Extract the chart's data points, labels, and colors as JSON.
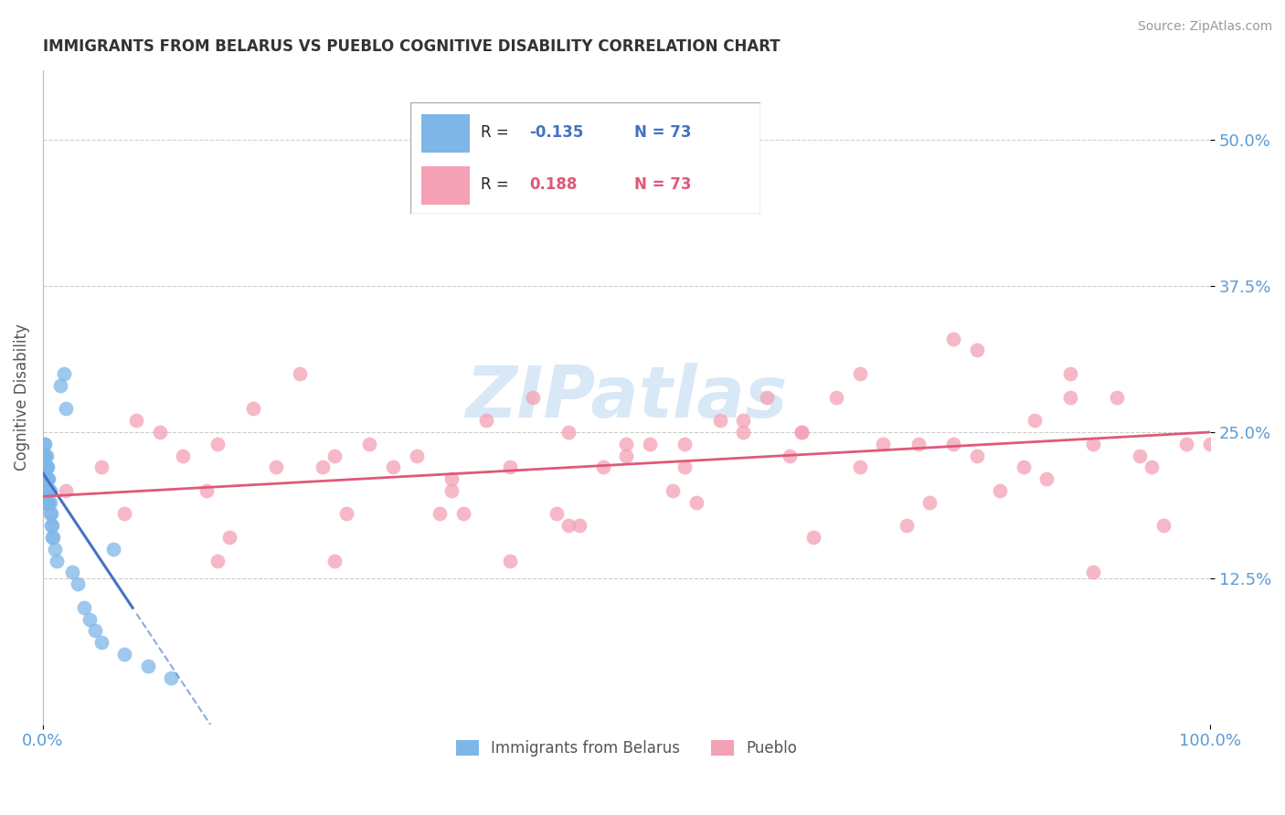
{
  "title": "IMMIGRANTS FROM BELARUS VS PUEBLO COGNITIVE DISABILITY CORRELATION CHART",
  "source_text": "Source: ZipAtlas.com",
  "ylabel": "Cognitive Disability",
  "xlim": [
    0.0,
    1.0
  ],
  "ylim": [
    0.0,
    0.56
  ],
  "yticks": [
    0.125,
    0.25,
    0.375,
    0.5
  ],
  "ytick_labels": [
    "12.5%",
    "25.0%",
    "37.5%",
    "50.0%"
  ],
  "xticks": [
    0.0,
    1.0
  ],
  "xtick_labels": [
    "0.0%",
    "100.0%"
  ],
  "blue_R": -0.135,
  "blue_N": 73,
  "pink_R": 0.188,
  "pink_N": 73,
  "blue_color": "#7EB6E8",
  "pink_color": "#F4A0B5",
  "blue_line_color": "#4472C4",
  "pink_line_color": "#E05878",
  "grid_color": "#CCCCCC",
  "title_color": "#333333",
  "axis_label_color": "#555555",
  "tick_label_color": "#5B9BD5",
  "source_color": "#999999",
  "watermark_color": "#AACCEE",
  "legend_blue_label": "Immigrants from Belarus",
  "legend_pink_label": "Pueblo",
  "blue_scatter_x": [
    0.001,
    0.001,
    0.001,
    0.001,
    0.001,
    0.001,
    0.001,
    0.001,
    0.001,
    0.001,
    0.001,
    0.001,
    0.001,
    0.001,
    0.001,
    0.001,
    0.002,
    0.002,
    0.002,
    0.002,
    0.002,
    0.002,
    0.002,
    0.002,
    0.002,
    0.002,
    0.002,
    0.002,
    0.002,
    0.002,
    0.003,
    0.003,
    0.003,
    0.003,
    0.003,
    0.003,
    0.003,
    0.003,
    0.003,
    0.003,
    0.004,
    0.004,
    0.004,
    0.004,
    0.004,
    0.004,
    0.005,
    0.005,
    0.005,
    0.005,
    0.006,
    0.006,
    0.006,
    0.007,
    0.007,
    0.008,
    0.008,
    0.009,
    0.01,
    0.012,
    0.015,
    0.018,
    0.02,
    0.025,
    0.03,
    0.035,
    0.04,
    0.045,
    0.05,
    0.06,
    0.07,
    0.09,
    0.11
  ],
  "blue_scatter_y": [
    0.21,
    0.22,
    0.2,
    0.23,
    0.19,
    0.24,
    0.22,
    0.21,
    0.2,
    0.23,
    0.22,
    0.21,
    0.2,
    0.19,
    0.22,
    0.23,
    0.22,
    0.21,
    0.2,
    0.23,
    0.24,
    0.2,
    0.21,
    0.22,
    0.2,
    0.21,
    0.19,
    0.22,
    0.23,
    0.2,
    0.21,
    0.22,
    0.2,
    0.23,
    0.19,
    0.21,
    0.22,
    0.2,
    0.21,
    0.22,
    0.2,
    0.21,
    0.22,
    0.19,
    0.2,
    0.21,
    0.2,
    0.21,
    0.19,
    0.2,
    0.18,
    0.19,
    0.2,
    0.17,
    0.18,
    0.17,
    0.16,
    0.16,
    0.15,
    0.14,
    0.29,
    0.3,
    0.27,
    0.13,
    0.12,
    0.1,
    0.09,
    0.08,
    0.07,
    0.15,
    0.06,
    0.05,
    0.04
  ],
  "pink_scatter_x": [
    0.02,
    0.05,
    0.08,
    0.1,
    0.12,
    0.15,
    0.18,
    0.2,
    0.22,
    0.25,
    0.28,
    0.3,
    0.32,
    0.35,
    0.38,
    0.4,
    0.42,
    0.45,
    0.48,
    0.5,
    0.52,
    0.55,
    0.58,
    0.6,
    0.62,
    0.65,
    0.68,
    0.7,
    0.72,
    0.75,
    0.78,
    0.8,
    0.82,
    0.85,
    0.88,
    0.9,
    0.92,
    0.95,
    0.98,
    0.07,
    0.14,
    0.24,
    0.34,
    0.44,
    0.54,
    0.64,
    0.74,
    0.84,
    0.94,
    0.16,
    0.26,
    0.36,
    0.46,
    0.56,
    0.66,
    0.76,
    0.86,
    0.96,
    0.4,
    0.55,
    0.7,
    0.8,
    0.6,
    0.45,
    0.35,
    0.25,
    0.15,
    0.9,
    0.78,
    0.88,
    0.5,
    0.65,
    1.0
  ],
  "pink_scatter_y": [
    0.2,
    0.22,
    0.26,
    0.25,
    0.23,
    0.24,
    0.27,
    0.22,
    0.3,
    0.23,
    0.24,
    0.22,
    0.23,
    0.2,
    0.26,
    0.22,
    0.28,
    0.25,
    0.22,
    0.23,
    0.24,
    0.24,
    0.26,
    0.25,
    0.28,
    0.25,
    0.28,
    0.22,
    0.24,
    0.24,
    0.24,
    0.23,
    0.2,
    0.26,
    0.28,
    0.24,
    0.28,
    0.22,
    0.24,
    0.18,
    0.2,
    0.22,
    0.18,
    0.18,
    0.2,
    0.23,
    0.17,
    0.22,
    0.23,
    0.16,
    0.18,
    0.18,
    0.17,
    0.19,
    0.16,
    0.19,
    0.21,
    0.17,
    0.14,
    0.22,
    0.3,
    0.32,
    0.26,
    0.17,
    0.21,
    0.14,
    0.14,
    0.13,
    0.33,
    0.3,
    0.24,
    0.25,
    0.24
  ],
  "blue_line_intercept": 0.215,
  "blue_line_slope": -1.5,
  "pink_line_intercept": 0.195,
  "pink_line_slope": 0.055
}
